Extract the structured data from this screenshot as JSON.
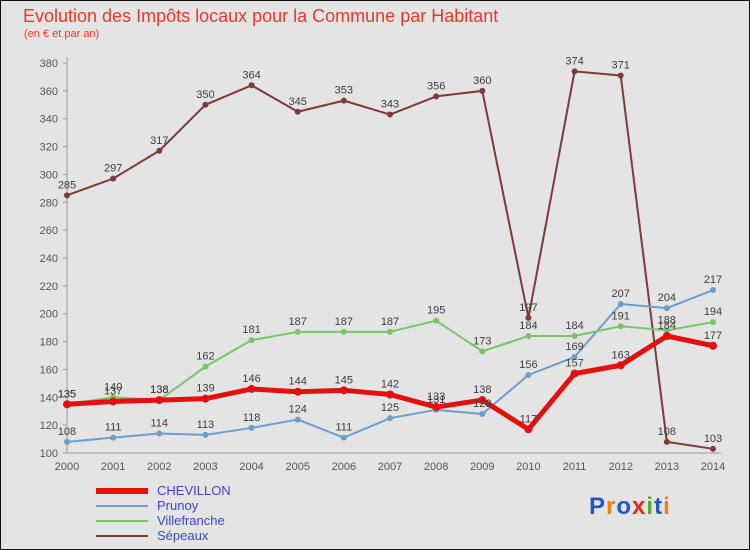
{
  "title": "Evolution des Impôts locaux pour la Commune par Habitant",
  "subtitle": "(en € et par an)",
  "chart_data": {
    "type": "line",
    "x": [
      2000,
      2001,
      2002,
      2003,
      2004,
      2005,
      2006,
      2007,
      2008,
      2009,
      2010,
      2011,
      2012,
      2013,
      2014
    ],
    "ylim": [
      100,
      380
    ],
    "yticks": [
      100,
      120,
      140,
      160,
      180,
      200,
      220,
      240,
      260,
      280,
      300,
      320,
      340,
      360,
      380
    ],
    "grid": false,
    "legend_position": "bottom-left",
    "series": [
      {
        "name": "CHEVILLON",
        "color": "#e40f0f",
        "line_width": 5,
        "values": [
          135,
          137,
          138,
          139,
          146,
          144,
          145,
          142,
          133,
          138,
          117,
          157,
          163,
          184,
          177
        ]
      },
      {
        "name": "Prunoy",
        "color": "#6d9ec9",
        "line_width": 2,
        "values": [
          108,
          111,
          114,
          113,
          118,
          124,
          111,
          125,
          131,
          128,
          156,
          169,
          207,
          204,
          217
        ]
      },
      {
        "name": "Villefranche",
        "color": "#79c36a",
        "line_width": 2,
        "values": [
          135,
          140,
          138,
          162,
          181,
          187,
          187,
          187,
          195,
          173,
          184,
          184,
          191,
          188,
          194
        ]
      },
      {
        "name": "Sépeaux",
        "color": "#7e3a3a",
        "line_width": 2,
        "values": [
          285,
          297,
          317,
          350,
          364,
          345,
          353,
          343,
          356,
          360,
          197,
          374,
          371,
          108,
          103
        ]
      }
    ]
  },
  "colors": {
    "title": "#e8382d",
    "axis_text": "#555555",
    "axis_line": "#9a9a9a",
    "data_label": "#3c3c3c",
    "legend_text": "#3d45c5",
    "background": "#e4e4e4"
  },
  "branding": {
    "text": "Proxiti",
    "letters": [
      {
        "ch": "P",
        "color": "#2257c4"
      },
      {
        "ch": "r",
        "color": "#f07f13"
      },
      {
        "ch": "o",
        "color": "#2257c4"
      },
      {
        "ch": "x",
        "color": "#e02a1e"
      },
      {
        "ch": "i",
        "color": "#57a829"
      },
      {
        "ch": "t",
        "color": "#2257c4"
      },
      {
        "ch": "i",
        "color": "#f07f13"
      }
    ]
  }
}
